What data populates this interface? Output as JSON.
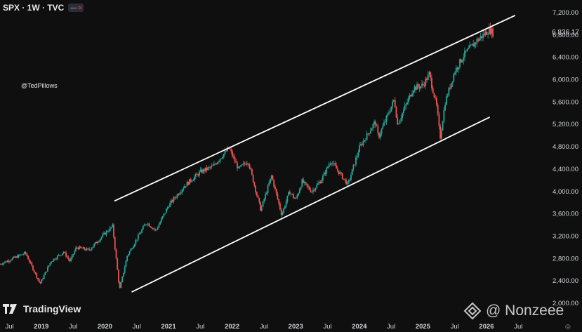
{
  "header": {
    "title": "SPX · 1W · TVC",
    "dash": "—",
    "wave": "≈"
  },
  "handle": "@TedPillows",
  "branding": {
    "logo_text": "TradingView",
    "watermark": "@ Nonzeee"
  },
  "current_price": "6,836.17",
  "colors": {
    "background": "#0f0f0f",
    "up": "#26a69a",
    "down": "#ef5350",
    "channel": "#ffffff",
    "text": "#d1d4dc"
  },
  "chart_data": {
    "type": "candlestick",
    "symbol": "SPX",
    "interval": "1W",
    "ylim": [
      2000,
      7200
    ],
    "y_ticks": [
      "7,200.00",
      "6,800.00",
      "6,400.00",
      "6,000.00",
      "5,600.00",
      "5,200.00",
      "4,800.00",
      "4,400.00",
      "4,000.00",
      "3,600.00",
      "3,200.00",
      "2,800.00",
      "2,400.00",
      "2,000.00"
    ],
    "x_ticks": [
      {
        "label": "Jul",
        "t": 2018.5
      },
      {
        "label": "2019",
        "t": 2019.0
      },
      {
        "label": "Jul",
        "t": 2019.5
      },
      {
        "label": "2020",
        "t": 2020.0
      },
      {
        "label": "Jul",
        "t": 2020.5
      },
      {
        "label": "2021",
        "t": 2021.0
      },
      {
        "label": "Jul",
        "t": 2021.5
      },
      {
        "label": "2022",
        "t": 2022.0
      },
      {
        "label": "Jul",
        "t": 2022.5
      },
      {
        "label": "2023",
        "t": 2023.0
      },
      {
        "label": "Jul",
        "t": 2023.5
      },
      {
        "label": "2024",
        "t": 2024.0
      },
      {
        "label": "Jul",
        "t": 2024.5
      },
      {
        "label": "2025",
        "t": 2025.0
      },
      {
        "label": "Jul",
        "t": 2025.5
      },
      {
        "label": "2026",
        "t": 2026.0
      },
      {
        "label": "Jul",
        "t": 2026.5
      }
    ],
    "series": [
      {
        "t": 2018.35,
        "v": 2700
      },
      {
        "t": 2018.75,
        "v": 2900
      },
      {
        "t": 2018.98,
        "v": 2350
      },
      {
        "t": 2019.15,
        "v": 2750
      },
      {
        "t": 2019.35,
        "v": 2920
      },
      {
        "t": 2019.45,
        "v": 2750
      },
      {
        "t": 2019.55,
        "v": 3000
      },
      {
        "t": 2019.75,
        "v": 2950
      },
      {
        "t": 2020.0,
        "v": 3250
      },
      {
        "t": 2020.12,
        "v": 3380
      },
      {
        "t": 2020.23,
        "v": 2240
      },
      {
        "t": 2020.35,
        "v": 2850
      },
      {
        "t": 2020.5,
        "v": 3150
      },
      {
        "t": 2020.65,
        "v": 3450
      },
      {
        "t": 2020.8,
        "v": 3300
      },
      {
        "t": 2021.0,
        "v": 3750
      },
      {
        "t": 2021.25,
        "v": 4100
      },
      {
        "t": 2021.5,
        "v": 4350
      },
      {
        "t": 2021.7,
        "v": 4450
      },
      {
        "t": 2021.95,
        "v": 4780
      },
      {
        "t": 2022.1,
        "v": 4400
      },
      {
        "t": 2022.25,
        "v": 4550
      },
      {
        "t": 2022.45,
        "v": 3670
      },
      {
        "t": 2022.62,
        "v": 4280
      },
      {
        "t": 2022.78,
        "v": 3580
      },
      {
        "t": 2022.9,
        "v": 4000
      },
      {
        "t": 2023.0,
        "v": 3850
      },
      {
        "t": 2023.1,
        "v": 4180
      },
      {
        "t": 2023.25,
        "v": 4000
      },
      {
        "t": 2023.4,
        "v": 4200
      },
      {
        "t": 2023.55,
        "v": 4550
      },
      {
        "t": 2023.82,
        "v": 4120
      },
      {
        "t": 2024.0,
        "v": 4780
      },
      {
        "t": 2024.25,
        "v": 5250
      },
      {
        "t": 2024.3,
        "v": 4970
      },
      {
        "t": 2024.55,
        "v": 5650
      },
      {
        "t": 2024.6,
        "v": 5200
      },
      {
        "t": 2024.85,
        "v": 5850
      },
      {
        "t": 2025.0,
        "v": 5900
      },
      {
        "t": 2025.1,
        "v": 6100
      },
      {
        "t": 2025.22,
        "v": 5500
      },
      {
        "t": 2025.27,
        "v": 4950
      },
      {
        "t": 2025.35,
        "v": 5600
      },
      {
        "t": 2025.5,
        "v": 6150
      },
      {
        "t": 2025.65,
        "v": 6450
      },
      {
        "t": 2025.85,
        "v": 6700
      },
      {
        "t": 2025.95,
        "v": 6800
      },
      {
        "t": 2026.05,
        "v": 6900
      },
      {
        "t": 2026.1,
        "v": 6836
      }
    ],
    "channel": {
      "upper": [
        {
          "t": 2020.15,
          "v": 3830
        },
        {
          "t": 2026.45,
          "v": 7150
        }
      ],
      "lower": [
        {
          "t": 2020.42,
          "v": 2200
        },
        {
          "t": 2026.05,
          "v": 5330
        }
      ]
    }
  }
}
